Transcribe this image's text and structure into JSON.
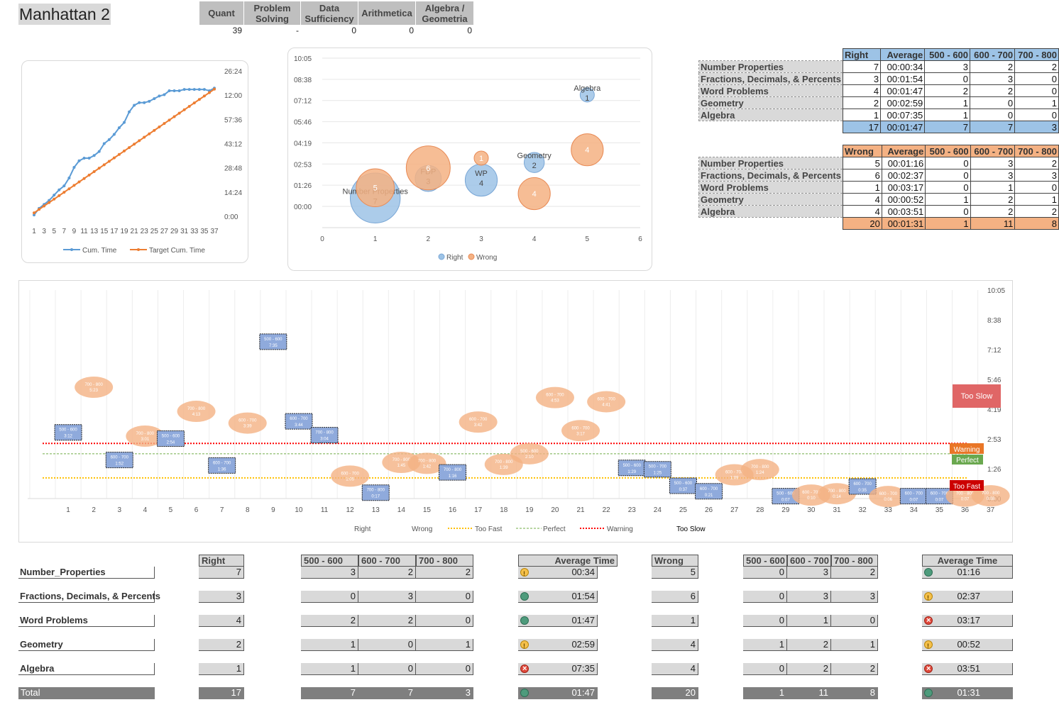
{
  "title": "Manhattan 2",
  "summary": {
    "headers": [
      "Quant",
      "Problem Solving",
      "Data Sufficiency",
      "Arithmetica",
      "Algebra / Geometria"
    ],
    "values": [
      "39",
      "-",
      "0",
      "0",
      "0"
    ]
  },
  "right_table": {
    "headers": [
      "Right",
      "Average",
      "500 - 600",
      "600 - 700",
      "700 - 800"
    ],
    "rows": [
      {
        "label": "Number Properties",
        "cells": [
          "7",
          "00:00:34",
          "3",
          "2",
          "2"
        ]
      },
      {
        "label": "Fractions, Decimals, & Percents",
        "cells": [
          "3",
          "00:01:54",
          "0",
          "3",
          "0"
        ]
      },
      {
        "label": "Word Problems",
        "cells": [
          "4",
          "00:01:47",
          "2",
          "2",
          "0"
        ]
      },
      {
        "label": "Geometry",
        "cells": [
          "2",
          "00:02:59",
          "1",
          "0",
          "1"
        ]
      },
      {
        "label": "Algebra",
        "cells": [
          "1",
          "00:07:35",
          "1",
          "0",
          "0"
        ]
      }
    ],
    "total": [
      "17",
      "00:01:47",
      "7",
      "7",
      "3"
    ]
  },
  "wrong_table": {
    "headers": [
      "Wrong",
      "Average",
      "500 - 600",
      "600 - 700",
      "700 - 800"
    ],
    "rows": [
      {
        "label": "Number Properties",
        "cells": [
          "5",
          "00:01:16",
          "0",
          "3",
          "2"
        ]
      },
      {
        "label": "Fractions, Decimals, & Percents",
        "cells": [
          "6",
          "00:02:37",
          "0",
          "3",
          "3"
        ]
      },
      {
        "label": "Word Problems",
        "cells": [
          "1",
          "00:03:17",
          "0",
          "1",
          "0"
        ]
      },
      {
        "label": "Geometry",
        "cells": [
          "4",
          "00:00:52",
          "1",
          "2",
          "1"
        ]
      },
      {
        "label": "Algebra",
        "cells": [
          "4",
          "00:03:51",
          "0",
          "2",
          "2"
        ]
      }
    ],
    "total": [
      "20",
      "00:01:31",
      "1",
      "11",
      "8"
    ]
  },
  "bottom_table": {
    "right_header": "Right",
    "diff_headers": [
      "500 - 600",
      "600 - 700",
      "700 - 800"
    ],
    "avg_header": "Average Time",
    "wrong_header": "Wrong",
    "rows": [
      {
        "label": "Number_Properties",
        "right": "7",
        "rdiff": [
          "3",
          "2",
          "2"
        ],
        "ravg": "00:34",
        "rstatus": "y",
        "wrong": "5",
        "wdiff": [
          "0",
          "3",
          "2"
        ],
        "wavg": "01:16",
        "wstatus": "g"
      },
      {
        "label": "Fractions, Decimals, & Percents",
        "right": "3",
        "rdiff": [
          "0",
          "3",
          "0"
        ],
        "ravg": "01:54",
        "rstatus": "g",
        "wrong": "6",
        "wdiff": [
          "0",
          "3",
          "3"
        ],
        "wavg": "02:37",
        "wstatus": "y"
      },
      {
        "label": "Word Problems",
        "right": "4",
        "rdiff": [
          "2",
          "2",
          "0"
        ],
        "ravg": "01:47",
        "rstatus": "g",
        "wrong": "1",
        "wdiff": [
          "0",
          "1",
          "0"
        ],
        "wavg": "03:17",
        "wstatus": "r"
      },
      {
        "label": "Geometry",
        "right": "2",
        "rdiff": [
          "1",
          "0",
          "1"
        ],
        "ravg": "02:59",
        "rstatus": "y",
        "wrong": "4",
        "wdiff": [
          "1",
          "2",
          "1"
        ],
        "wavg": "00:52",
        "wstatus": "y"
      },
      {
        "label": "Algebra",
        "right": "1",
        "rdiff": [
          "1",
          "0",
          "0"
        ],
        "ravg": "07:35",
        "rstatus": "r",
        "wrong": "4",
        "wdiff": [
          "0",
          "2",
          "2"
        ],
        "wavg": "03:51",
        "wstatus": "r"
      }
    ],
    "total": {
      "label": "Total",
      "right": "17",
      "rdiff": [
        "7",
        "7",
        "3"
      ],
      "ravg": "01:47",
      "rstatus": "g",
      "wrong": "20",
      "wdiff": [
        "1",
        "11",
        "8"
      ],
      "wavg": "01:31",
      "wstatus": "g"
    }
  },
  "chart_data": [
    {
      "type": "line",
      "y_ticks": [
        "0:00",
        "14:24",
        "28:48",
        "43:12",
        "57:36",
        "12:00",
        "26:24"
      ],
      "x_ticks": [
        "1",
        "3",
        "5",
        "7",
        "9",
        "11",
        "13",
        "15",
        "17",
        "19",
        "21",
        "23",
        "25",
        "27",
        "29",
        "31",
        "33",
        "35",
        "37"
      ],
      "series": [
        {
          "name": "Cum. Time",
          "color": "#5b9bd5",
          "values_minutes": [
            1,
            6,
            9,
            12,
            16,
            20,
            23,
            29,
            37,
            42,
            44,
            44,
            46,
            49,
            55,
            58,
            62,
            67,
            71,
            79,
            84,
            86,
            86,
            87,
            89,
            91,
            92,
            95,
            95,
            95,
            96,
            96,
            96,
            96,
            96,
            95,
            97
          ]
        },
        {
          "name": "Target Cum. Time",
          "color": "#ed7d31",
          "values_minutes": [
            2.6,
            5.2,
            7.8,
            10.4,
            13,
            15.6,
            18.2,
            20.8,
            23.4,
            26,
            28.6,
            31.2,
            33.8,
            36.4,
            39,
            41.6,
            44.2,
            46.8,
            49.4,
            52,
            54.6,
            57.2,
            59.8,
            62.4,
            65,
            67.6,
            70.2,
            72.8,
            75.4,
            78,
            80.6,
            83.2,
            85.8,
            88.4,
            91,
            93.6,
            96.2
          ]
        }
      ]
    },
    {
      "type": "scatter",
      "x_ticks": [
        "0",
        "1",
        "2",
        "3",
        "4",
        "5",
        "6"
      ],
      "y_ticks": [
        "00:00",
        "01:26",
        "02:53",
        "04:19",
        "05:46",
        "07:12",
        "08:38",
        "10:05"
      ],
      "legend": [
        "Right",
        "Wrong"
      ],
      "series": [
        {
          "name": "Right",
          "color": "#9dc3e6",
          "points": [
            {
              "x": 1,
              "y_sec": 34,
              "size": 7,
              "label": "Number Properties",
              "count": "7"
            },
            {
              "x": 2,
              "y_sec": 114,
              "size": 3,
              "label": "FDP",
              "count": "3"
            },
            {
              "x": 3,
              "y_sec": 107,
              "size": 4,
              "label": "WP",
              "count": "4"
            },
            {
              "x": 4,
              "y_sec": 179,
              "size": 2,
              "label": "Geometry",
              "count": "2"
            },
            {
              "x": 5,
              "y_sec": 455,
              "size": 1,
              "label": "Algebra",
              "count": "1"
            }
          ]
        },
        {
          "name": "Wrong",
          "color": "#f4b183",
          "points": [
            {
              "x": 1,
              "y_sec": 76,
              "size": 5,
              "count": "5"
            },
            {
              "x": 2,
              "y_sec": 157,
              "size": 6,
              "count": "6"
            },
            {
              "x": 3,
              "y_sec": 197,
              "size": 1,
              "count": "1"
            },
            {
              "x": 4,
              "y_sec": 52,
              "size": 4,
              "count": "4"
            },
            {
              "x": 5,
              "y_sec": 231,
              "size": 4,
              "count": "4"
            }
          ]
        }
      ]
    },
    {
      "type": "scatter",
      "x_ticks": [
        "1",
        "2",
        "3",
        "4",
        "5",
        "6",
        "7",
        "8",
        "9",
        "10",
        "11",
        "12",
        "13",
        "14",
        "15",
        "16",
        "17",
        "18",
        "19",
        "20",
        "21",
        "22",
        "23",
        "24",
        "25",
        "26",
        "27",
        "28",
        "29",
        "30",
        "31",
        "32",
        "33",
        "34",
        "35",
        "36",
        "37"
      ],
      "y_ticks": [
        "0:00",
        "1:26",
        "2:53",
        "4:19",
        "5:46",
        "7:12",
        "8:38",
        "10:05"
      ],
      "reference_lines": [
        {
          "name": "Too Fast",
          "y_sec": 60,
          "color": "#ffc000"
        },
        {
          "name": "Perfect",
          "y_sec": 130,
          "color": "#70ad47"
        },
        {
          "name": "Warning",
          "y_sec": 160,
          "color": "#ff0000"
        }
      ],
      "legend": [
        "Right",
        "Wrong",
        "Too Fast",
        "Perfect",
        "Warning",
        "Too Slow"
      ],
      "flags": [
        {
          "label": "Too Slow",
          "color": "#e06666"
        },
        {
          "label": "Warning",
          "color": "#e97627"
        },
        {
          "label": "Perfect",
          "color": "#6aa84f"
        },
        {
          "label": "Too Fast",
          "color": "#cc0000"
        }
      ],
      "points": [
        {
          "q": 1,
          "result": "right",
          "level": "500 - 600",
          "time": "3:12",
          "sec": 192
        },
        {
          "q": 2,
          "result": "wrong",
          "level": "700 - 800",
          "time": "5:23",
          "sec": 323
        },
        {
          "q": 3,
          "result": "right",
          "level": "600 - 700",
          "time": "1:52",
          "sec": 112
        },
        {
          "q": 4,
          "result": "wrong",
          "level": "700 - 800",
          "time": "3:01",
          "sec": 181
        },
        {
          "q": 5,
          "result": "right",
          "level": "500 - 600",
          "time": "2:54",
          "sec": 174
        },
        {
          "q": 6,
          "result": "wrong",
          "level": "700 - 800",
          "time": "4:13",
          "sec": 253
        },
        {
          "q": 7,
          "result": "right",
          "level": "600 - 700",
          "time": "1:36",
          "sec": 96
        },
        {
          "q": 8,
          "result": "wrong",
          "level": "600 - 700",
          "time": "3:39",
          "sec": 219
        },
        {
          "q": 9,
          "result": "right",
          "level": "500 - 600",
          "time": "7:35",
          "sec": 455
        },
        {
          "q": 10,
          "result": "right",
          "level": "600 - 700",
          "time": "3:44",
          "sec": 224
        },
        {
          "q": 11,
          "result": "right",
          "level": "700 - 800",
          "time": "3:04",
          "sec": 184
        },
        {
          "q": 12,
          "result": "wrong",
          "level": "600 - 700",
          "time": "1:05",
          "sec": 65
        },
        {
          "q": 13,
          "result": "right",
          "level": "700 - 800",
          "time": "0:17",
          "sec": 17
        },
        {
          "q": 14,
          "result": "wrong",
          "level": "700 - 800",
          "time": "1:45",
          "sec": 105
        },
        {
          "q": 15,
          "result": "wrong",
          "level": "700 - 800",
          "time": "1:42",
          "sec": 102
        },
        {
          "q": 16,
          "result": "right",
          "level": "700 - 800",
          "time": "1:16",
          "sec": 76
        },
        {
          "q": 17,
          "result": "wrong",
          "level": "600 - 700",
          "time": "3:42",
          "sec": 222
        },
        {
          "q": 18,
          "result": "wrong",
          "level": "700 - 800",
          "time": "1:39",
          "sec": 99
        },
        {
          "q": 19,
          "result": "wrong",
          "level": "500 - 600",
          "time": "2:10",
          "sec": 130
        },
        {
          "q": 20,
          "result": "wrong",
          "level": "600 - 700",
          "time": "4:53",
          "sec": 293
        },
        {
          "q": 21,
          "result": "wrong",
          "level": "600 - 700",
          "time": "3:17",
          "sec": 197
        },
        {
          "q": 22,
          "result": "wrong",
          "level": "600 - 700",
          "time": "4:41",
          "sec": 281
        },
        {
          "q": 23,
          "result": "right",
          "level": "500 - 600",
          "time": "1:29",
          "sec": 89
        },
        {
          "q": 24,
          "result": "right",
          "level": "500 - 700",
          "time": "1:25",
          "sec": 85
        },
        {
          "q": 25,
          "result": "right",
          "level": "500 - 600",
          "time": "0:37",
          "sec": 37
        },
        {
          "q": 26,
          "result": "right",
          "level": "600 - 700",
          "time": "0:21",
          "sec": 21
        },
        {
          "q": 27,
          "result": "wrong",
          "level": "600 - 700",
          "time": "1:09",
          "sec": 69
        },
        {
          "q": 28,
          "result": "wrong",
          "level": "700 - 800",
          "time": "1:24",
          "sec": 84
        },
        {
          "q": 29,
          "result": "right",
          "level": "500 - 600",
          "time": "0:07",
          "sec": 7
        },
        {
          "q": 30,
          "result": "wrong",
          "level": "600 - 700",
          "time": "0:10",
          "sec": 10
        },
        {
          "q": 31,
          "result": "wrong",
          "level": "700 - 800",
          "time": "0:14",
          "sec": 14
        },
        {
          "q": 32,
          "result": "right",
          "level": "600 - 700",
          "time": "0:35",
          "sec": 35
        },
        {
          "q": 33,
          "result": "wrong",
          "level": "600 - 700",
          "time": "0:06",
          "sec": 6
        },
        {
          "q": 34,
          "result": "right",
          "level": "600 - 700",
          "time": "0:07",
          "sec": 7
        },
        {
          "q": 35,
          "result": "right",
          "level": "600 - 700",
          "time": "0:07",
          "sec": 7
        },
        {
          "q": 36,
          "result": "wrong",
          "level": "700 - 800",
          "time": "0:07",
          "sec": 7
        },
        {
          "q": 37,
          "result": "wrong",
          "level": "700 - 800",
          "time": "0:08",
          "sec": 8
        }
      ]
    }
  ]
}
